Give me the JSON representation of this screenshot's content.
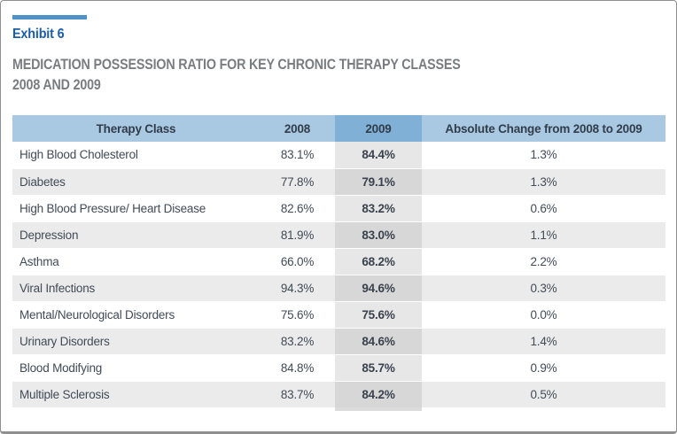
{
  "exhibit": {
    "label": "Exhibit 6"
  },
  "title": {
    "line1": "MEDICATION POSSESSION RATIO FOR KEY CHRONIC THERAPY CLASSES",
    "line2": "2008 AND 2009"
  },
  "table": {
    "columns": [
      "Therapy Class",
      "2008",
      "2009",
      "Absolute Change from 2008 to 2009"
    ],
    "rows": [
      {
        "therapy_class": "High Blood Cholesterol",
        "y2008": "83.1%",
        "y2009": "84.4%",
        "change": "1.3%"
      },
      {
        "therapy_class": "Diabetes",
        "y2008": "77.8%",
        "y2009": "79.1%",
        "change": "1.3%"
      },
      {
        "therapy_class": "High Blood Pressure/ Heart Disease",
        "y2008": "82.6%",
        "y2009": "83.2%",
        "change": "0.6%"
      },
      {
        "therapy_class": "Depression",
        "y2008": "81.9%",
        "y2009": "83.0%",
        "change": "1.1%"
      },
      {
        "therapy_class": "Asthma",
        "y2008": "66.0%",
        "y2009": "68.2%",
        "change": "2.2%"
      },
      {
        "therapy_class": "Viral Infections",
        "y2008": "94.3%",
        "y2009": "94.6%",
        "change": "0.3%"
      },
      {
        "therapy_class": "Mental/Neurological Disorders",
        "y2008": "75.6%",
        "y2009": "75.6%",
        "change": "0.0%"
      },
      {
        "therapy_class": "Urinary Disorders",
        "y2008": "83.2%",
        "y2009": "84.6%",
        "change": "1.4%"
      },
      {
        "therapy_class": "Blood Modifying",
        "y2008": "84.8%",
        "y2009": "85.7%",
        "change": "0.9%"
      },
      {
        "therapy_class": "Multiple Sclerosis",
        "y2008": "83.7%",
        "y2009": "84.2%",
        "change": "0.5%"
      }
    ]
  },
  "colors": {
    "accent_bar": "#4e92c8",
    "exhibit_text": "#1a5dab",
    "title_text": "#7a7d80",
    "header_bg": "#a9c8e1",
    "header_2009_bg": "#80b0d5",
    "header_text": "#313d4b",
    "body_text": "#414b57",
    "alt_row_bg": "#ebebeb",
    "col_2009_bg": "#e7e7e7",
    "col_2009_alt_bg": "#d7d7d7",
    "frame_border": "#8f8f8f"
  }
}
